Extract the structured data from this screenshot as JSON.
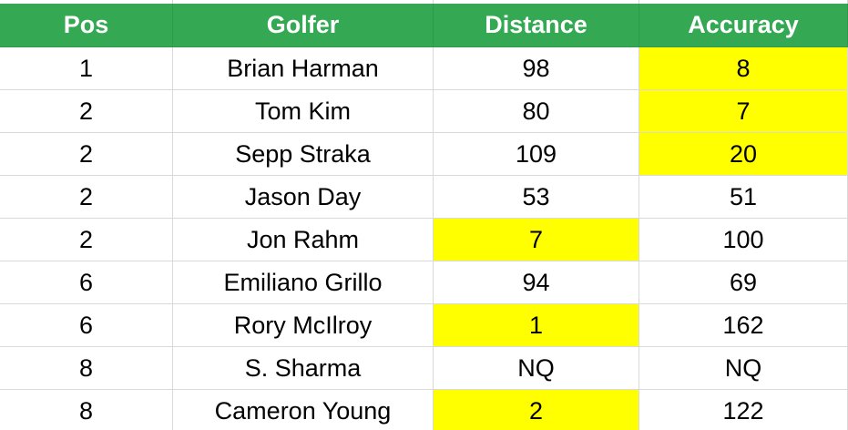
{
  "table": {
    "columns": [
      "Pos",
      "Golfer",
      "Distance",
      "Accuracy"
    ],
    "rows": [
      [
        1,
        "Brian Harman",
        98,
        8
      ],
      [
        2,
        "Tom Kim",
        80,
        7
      ],
      [
        2,
        "Sepp Straka",
        109,
        20
      ],
      [
        2,
        "Jason Day",
        53,
        51
      ],
      [
        2,
        "Jon Rahm",
        7,
        100
      ],
      [
        6,
        "Emiliano Grillo",
        94,
        69
      ],
      [
        6,
        "Rory McIlroy",
        1,
        162
      ],
      [
        8,
        "S. Sharma",
        "NQ",
        "NQ"
      ],
      [
        8,
        "Cameron Young",
        2,
        122
      ]
    ],
    "header_color": "#34a853",
    "highlight_color": "#ffff00",
    "highlighted": [
      [
        0,
        3
      ],
      [
        1,
        3
      ],
      [
        2,
        3
      ],
      [
        4,
        2
      ],
      [
        6,
        2
      ],
      [
        8,
        2
      ]
    ]
  }
}
